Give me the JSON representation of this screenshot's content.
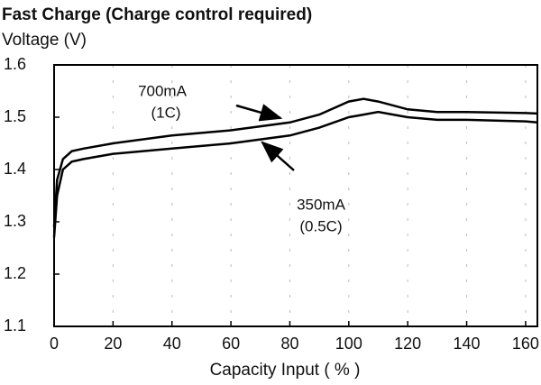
{
  "chart_data": {
    "type": "line",
    "title": "Fast Charge (Charge control required)",
    "y_label": "Voltage (V)",
    "x_label": "Capacity Input ( % )",
    "x": [
      0,
      1,
      3,
      6,
      10,
      20,
      40,
      60,
      80,
      90,
      100,
      105,
      110,
      120,
      130,
      140,
      160,
      164
    ],
    "series": [
      {
        "color": "#000000",
        "values": [
          1.29,
          1.38,
          1.42,
          1.435,
          1.44,
          1.45,
          1.465,
          1.475,
          1.49,
          1.505,
          1.53,
          1.535,
          1.53,
          1.515,
          1.51,
          1.51,
          1.508,
          1.507
        ]
      },
      {
        "color": "#000000",
        "values": [
          1.27,
          1.35,
          1.4,
          1.415,
          1.42,
          1.43,
          1.44,
          1.45,
          1.465,
          1.48,
          1.5,
          1.505,
          1.51,
          1.5,
          1.495,
          1.495,
          1.492,
          1.49
        ]
      }
    ],
    "annotations": [
      "700mA",
      "(1C)",
      "350mA",
      "(0.5C)"
    ],
    "xlim": [
      0,
      164
    ],
    "xticks": [
      0,
      20,
      40,
      60,
      80,
      100,
      120,
      140,
      160
    ],
    "ylim": [
      1.1,
      1.6
    ],
    "yticks": [
      1.1,
      1.2,
      1.3,
      1.4,
      1.5,
      1.6
    ],
    "grid": true
  }
}
